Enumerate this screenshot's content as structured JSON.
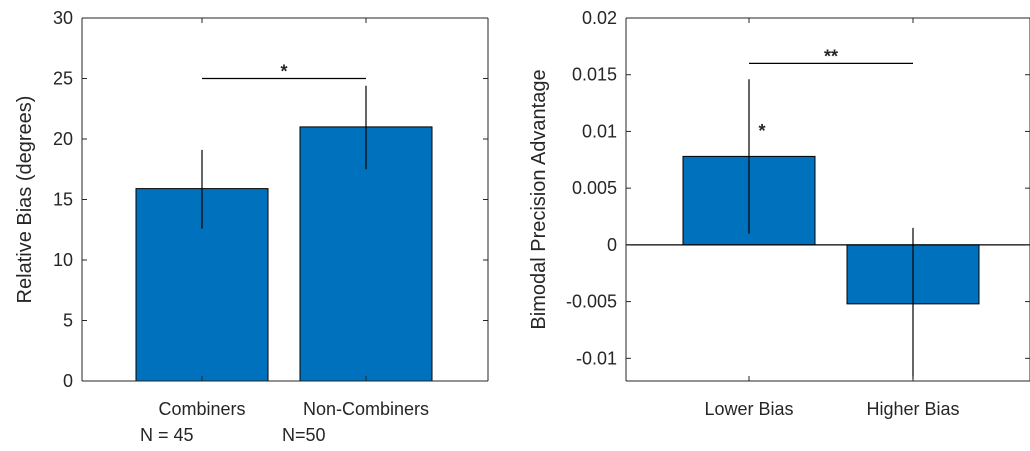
{
  "chart_data": [
    {
      "type": "bar",
      "categories": [
        "Combiners",
        "Non-Combiners"
      ],
      "category_sublabels": [
        "N = 45",
        "N=50"
      ],
      "values": [
        15.9,
        21.0
      ],
      "error_low": [
        12.6,
        17.5
      ],
      "error_high": [
        19.1,
        24.4
      ],
      "ylabel": "Relative Bias (degrees)",
      "xlabel": "",
      "ylim": [
        0,
        30
      ],
      "yticks": [
        0,
        5,
        10,
        15,
        20,
        25,
        30
      ],
      "ytick_labels": [
        "0",
        "5",
        "10",
        "15",
        "20",
        "25",
        "30"
      ],
      "bar_color": "#0072BD",
      "significance": [
        {
          "between": [
            0,
            1
          ],
          "y": 25,
          "label": "*"
        }
      ]
    },
    {
      "type": "bar",
      "categories": [
        "Lower Bias",
        "Higher Bias"
      ],
      "values": [
        0.0078,
        -0.0052
      ],
      "error_low": [
        0.001,
        -0.0118
      ],
      "error_high": [
        0.0146,
        0.0015
      ],
      "ylabel": "Bimodal Precision Advantage",
      "xlabel": "",
      "ylim": [
        -0.012,
        0.02
      ],
      "yticks": [
        -0.01,
        -0.005,
        0,
        0.005,
        0.01,
        0.015,
        0.02
      ],
      "ytick_labels": [
        "-0.01",
        "-0.005",
        "0",
        "0.005",
        "0.01",
        "0.015",
        "0.02"
      ],
      "bar_color": "#0072BD",
      "zero_line": true,
      "significance": [
        {
          "between": [
            0,
            1
          ],
          "y": 0.016,
          "label": "**"
        },
        {
          "over": 0,
          "y": 0.0095,
          "label": "*"
        }
      ]
    }
  ]
}
